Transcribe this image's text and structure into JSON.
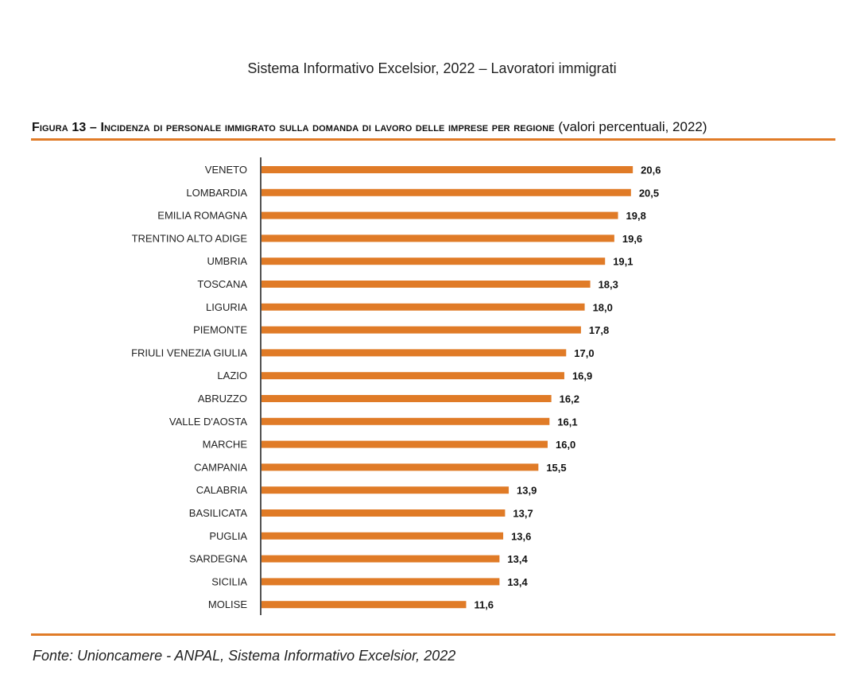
{
  "header": {
    "text": "Sistema Informativo Excelsior, 2022 – Lavoratori immigrati"
  },
  "figure": {
    "label": "Figura 13 – Incidenza di personale immigrato sulla domanda di lavoro delle imprese per regione",
    "subtitle": "(valori percentuali, 2022)"
  },
  "chart_data": {
    "type": "bar",
    "orientation": "horizontal",
    "bar_color": "#e07b27",
    "grid": false,
    "categories": [
      "VENETO",
      "LOMBARDIA",
      "EMILIA ROMAGNA",
      "TRENTINO ALTO ADIGE",
      "UMBRIA",
      "TOSCANA",
      "LIGURIA",
      "PIEMONTE",
      "FRIULI VENEZIA GIULIA",
      "LAZIO",
      "ABRUZZO",
      "VALLE D'AOSTA",
      "MARCHE",
      "CAMPANIA",
      "CALABRIA",
      "BASILICATA",
      "PUGLIA",
      "SARDEGNA",
      "SICILIA",
      "MOLISE"
    ],
    "values": [
      20.6,
      20.5,
      19.8,
      19.6,
      19.1,
      18.3,
      18.0,
      17.8,
      17.0,
      16.9,
      16.2,
      16.1,
      16.0,
      15.5,
      13.9,
      13.7,
      13.6,
      13.4,
      13.4,
      11.6
    ],
    "value_labels": [
      "20,6",
      "20,5",
      "19,8",
      "19,6",
      "19,1",
      "18,3",
      "18,0",
      "17,8",
      "17,0",
      "16,9",
      "16,2",
      "16,1",
      "16,0",
      "15,5",
      "13,9",
      "13,7",
      "13,6",
      "13,4",
      "13,4",
      "11,6"
    ]
  },
  "source": {
    "text": "Fonte: Unioncamere - ANPAL, Sistema Informativo Excelsior, 2022"
  }
}
